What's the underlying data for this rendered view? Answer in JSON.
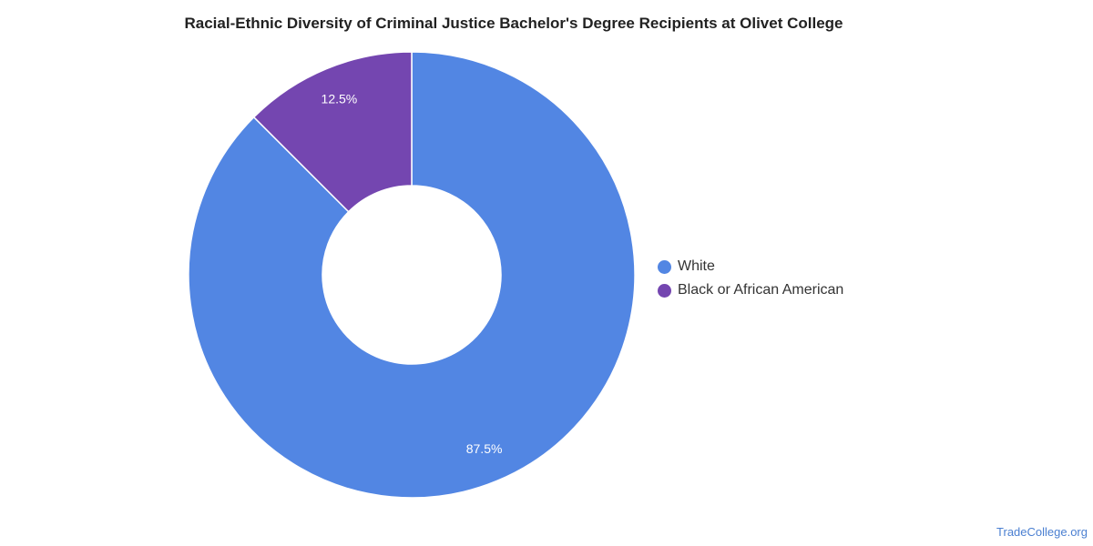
{
  "chart_data": {
    "type": "pie",
    "title": "Racial-Ethnic Diversity of Criminal Justice Bachelor's Degree Recipients at Olivet College",
    "donut": true,
    "legend_position": "right",
    "slices": [
      {
        "name": "White",
        "value": 87.5,
        "label": "87.5%",
        "color": "#5286e3"
      },
      {
        "name": "Black or African American",
        "value": 12.5,
        "label": "12.5%",
        "color": "#7446b0"
      }
    ]
  },
  "footer": {
    "watermark": "TradeCollege.org"
  }
}
